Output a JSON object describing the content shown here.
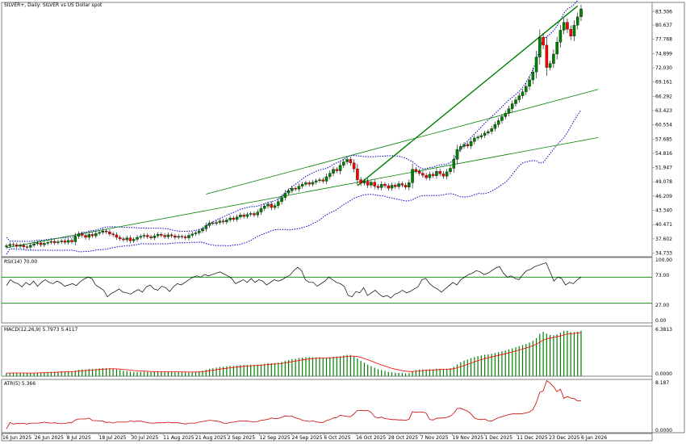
{
  "chart_data": {
    "type": "candlestick",
    "title": "SILVER+, Daily:  SILVER vs US Dollar spot",
    "dates": [
      "16 Jun 2025",
      "26 Jun 2025",
      "8 Jul 2025",
      "18 Jul 2025",
      "30 Jul 2025",
      "11 Aug 2025",
      "21 Aug 2025",
      "2 Sep 2025",
      "12 Sep 2025",
      "24 Sep 2025",
      "6 Oct 2025",
      "16 Oct 2025",
      "28 Oct 2025",
      "7 Nov 2025",
      "19 Nov 2025",
      "1 Dec 2025",
      "11 Dec 2025",
      "23 Dec 2025",
      "6 Jan 2026"
    ],
    "price_ticks": [
      "83.306",
      "80.637",
      "77.768",
      "74.899",
      "72.030",
      "69.161",
      "66.292",
      "63.423",
      "60.554",
      "57.685",
      "54.816",
      "51.947",
      "49.078",
      "46.209",
      "43.340",
      "40.471",
      "37.602",
      "34.733"
    ],
    "price_range": [
      34.0,
      85.2
    ],
    "closes": [
      36.2,
      36.5,
      36.4,
      36.1,
      36.3,
      36.0,
      35.9,
      36.3,
      36.6,
      36.8,
      36.4,
      36.7,
      36.9,
      37.1,
      36.8,
      37.0,
      37.2,
      36.9,
      37.3,
      37.0,
      38.1,
      38.6,
      38.3,
      37.9,
      38.5,
      38.2,
      38.7,
      38.9,
      39.2,
      39.0,
      38.6,
      38.4,
      37.9,
      37.6,
      37.4,
      37.8,
      37.2,
      37.5,
      37.9,
      38.1,
      38.3,
      38.0,
      37.8,
      38.2,
      38.5,
      38.3,
      38.0,
      38.4,
      38.2,
      37.9,
      38.1,
      38.0,
      37.8,
      38.3,
      38.6,
      38.8,
      39.2,
      39.6,
      40.3,
      40.8,
      40.7,
      40.9,
      41.2,
      41.0,
      41.4,
      41.8,
      41.5,
      42.0,
      42.4,
      42.1,
      42.5,
      42.7,
      42.4,
      43.0,
      43.7,
      44.2,
      44.6,
      43.9,
      44.3,
      45.1,
      45.9,
      46.8,
      47.3,
      47.8,
      47.6,
      48.2,
      48.6,
      48.9,
      48.6,
      49.0,
      49.3,
      49.5,
      49.2,
      50.1,
      50.8,
      51.6,
      51.3,
      52.4,
      53.1,
      53.6,
      52.9,
      51.7,
      49.5,
      48.8,
      49.2,
      48.4,
      49.0,
      48.2,
      47.9,
      48.6,
      48.3,
      47.8,
      48.4,
      48.1,
      48.7,
      48.4,
      48.0,
      48.9,
      51.6,
      51.2,
      50.8,
      50.4,
      49.9,
      50.6,
      50.3,
      51.2,
      50.7,
      50.2,
      51.1,
      51.8,
      53.6,
      55.6,
      56.2,
      56.6,
      56.3,
      57.2,
      57.9,
      58.1,
      58.4,
      58.9,
      59.2,
      59.8,
      60.6,
      61.4,
      62.2,
      62.9,
      63.8,
      64.8,
      65.6,
      66.4,
      67.2,
      68.3,
      69.6,
      71.2,
      74.2,
      78.2,
      76.6,
      72.1,
      72.9,
      74.8,
      77.2,
      79.6,
      81.2,
      79.8,
      78.4,
      80.6,
      82.3,
      83.9
    ],
    "bollinger_upper_first": 37.6,
    "bollinger_upper_last": 82.8,
    "bollinger_lower_first": 34.8,
    "bollinger_lower_last": 72.9,
    "trendline_steep": {
      "start": [
        102,
        48.3
      ],
      "end": [
        166,
        84.5
      ]
    },
    "channel_upper": {
      "start": [
        58,
        46.6
      ],
      "end": [
        172,
        67.7
      ]
    },
    "channel_lower": {
      "start": [
        0,
        35.8
      ],
      "end": [
        172,
        58.0
      ]
    },
    "rsi": {
      "label": "RSI(14) 70.00",
      "ticks": [
        "100.00",
        "73.00",
        "27.00",
        "0.00"
      ],
      "range": [
        0,
        100
      ],
      "levels": [
        70,
        30
      ],
      "values": [
        57,
        66,
        62,
        60,
        55,
        62,
        58,
        64,
        56,
        62,
        66,
        62,
        60,
        64,
        61,
        56,
        58,
        60,
        57,
        63,
        67,
        70,
        68,
        58,
        54,
        50,
        40,
        45,
        48,
        52,
        47,
        46,
        44,
        48,
        51,
        47,
        55,
        58,
        52,
        50,
        56,
        54,
        48,
        55,
        60,
        58,
        62,
        66,
        70,
        72,
        70,
        74,
        72,
        74,
        76,
        78,
        75,
        72,
        68,
        60,
        63,
        66,
        62,
        68,
        62,
        66,
        64,
        58,
        62,
        66,
        64,
        66,
        70,
        73,
        80,
        85,
        80,
        66,
        62,
        62,
        56,
        60,
        64,
        70,
        66,
        62,
        60,
        56,
        42,
        40,
        48,
        46,
        54,
        42,
        46,
        50,
        44,
        40,
        42,
        38,
        44,
        46,
        50,
        46,
        48,
        52,
        55,
        66,
        68,
        60,
        55,
        52,
        47,
        52,
        57,
        62,
        58,
        66,
        70,
        74,
        76,
        80,
        78,
        74,
        76,
        80,
        84,
        86,
        76,
        70,
        72,
        68,
        66,
        74,
        80,
        82,
        86,
        88,
        90,
        92,
        78,
        64,
        70,
        68,
        58,
        62,
        60,
        66,
        70
      ]
    },
    "macd": {
      "label": "MACD(12,26,9) 5.7973 5.4117",
      "top_tick": "6.3813",
      "bottom_tick": "0.0000",
      "range": [
        0,
        6.3813
      ],
      "hist_first": 0.35,
      "hist_last": 5.8,
      "signal_first": 0.3,
      "signal_last": 5.41
    },
    "atr": {
      "label": "ATR(5) 5.366",
      "top_tick": "8.187",
      "bottom_tick": "0.0000",
      "range": [
        0,
        8.187
      ],
      "first": 0.6,
      "last": 5.37,
      "peak": 8.0
    }
  },
  "colors": {
    "bull": "#008000",
    "bear": "#ff0000",
    "band": "#0000cd",
    "trend": "#008000",
    "macd_signal": "#ff0000",
    "atr": "#cc0000",
    "rsi": "#000000",
    "frame": "#808080"
  }
}
